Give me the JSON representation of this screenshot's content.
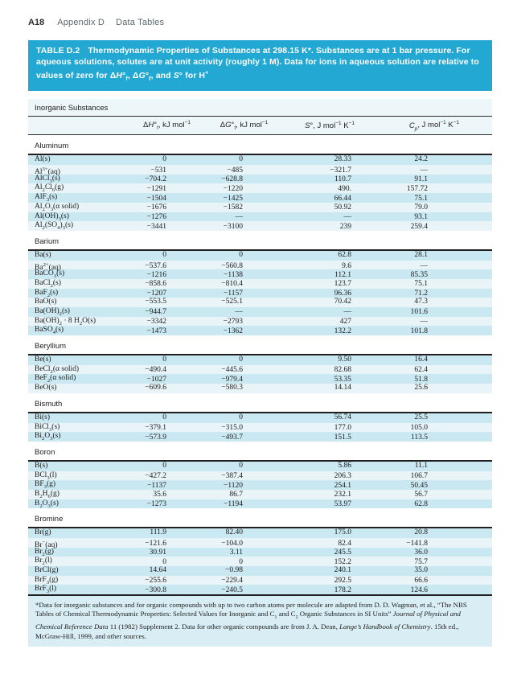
{
  "page": {
    "page_number": "A18",
    "appendix": "Appendix D",
    "section": "Data Tables"
  },
  "table": {
    "title_label": "TABLE D.2",
    "title_body_html": "Thermodynamic Properties of Substances at 298.15 K*. Substances are at 1 bar pressure. For aqueous solutions, solutes are at unit activity (roughly 1 M). Data for ions in aqueous solution are relative to values of zero for Δ<i>H</i>°<sub>f</sub>, Δ<i>G</i>°<sub>f</sub>, and <i>S</i>° for H<sup>+</sup>",
    "subtable_label": "Inorganic Substances",
    "columns": [
      {
        "html": "Δ<i>H</i>°<sub>f</sub>, kJ mol<sup>−1</sup>"
      },
      {
        "html": "Δ<i>G</i>°<sub>f</sub>, kJ mol<sup>−1</sup>"
      },
      {
        "html": "<i>S</i>°, J mol<sup>−1</sup> K<sup>−1</sup>"
      },
      {
        "html": "<i>C<sub>p</sub></i>, J mol<sup>−1</sup> K<sup>−1</sup>"
      }
    ],
    "missing_value_symbol": "—",
    "sections": [
      {
        "name": "Aluminum",
        "rows": [
          {
            "substance_html": "Al(s)",
            "values": [
              "0",
              "0",
              "28.33",
              "24.2"
            ]
          },
          {
            "substance_html": "Al<sup>3+</sup>(aq)",
            "values": [
              "−531",
              "−485",
              "−321.7",
              "—"
            ]
          },
          {
            "substance_html": "AlCl<sub>3</sub>(s)",
            "values": [
              "−704.2",
              "−628.8",
              "110.7",
              "91.1"
            ]
          },
          {
            "substance_html": "Al<sub>2</sub>Cl<sub>6</sub>(g)",
            "values": [
              "−1291",
              "−1220",
              "490.",
              "157.72"
            ]
          },
          {
            "substance_html": "AlF<sub>3</sub>(s)",
            "values": [
              "−1504",
              "−1425",
              "66.44",
              "75.1"
            ]
          },
          {
            "substance_html": "Al<sub>2</sub>O<sub>3</sub>(α solid)",
            "values": [
              "−1676",
              "−1582",
              "50.92",
              "79.0"
            ]
          },
          {
            "substance_html": "Al(OH)<sub>3</sub>(s)",
            "values": [
              "−1276",
              "—",
              "—",
              "93.1"
            ]
          },
          {
            "substance_html": "Al<sub>2</sub>(SO<sub>4</sub>)<sub>3</sub>(s)",
            "values": [
              "−3441",
              "−3100",
              "239",
              "259.4"
            ]
          }
        ]
      },
      {
        "name": "Barium",
        "rows": [
          {
            "substance_html": "Ba(s)",
            "values": [
              "0",
              "0",
              "62.8",
              "28.1"
            ]
          },
          {
            "substance_html": "Ba<sup>2+</sup>(aq)",
            "values": [
              "−537.6",
              "−560.8",
              "9.6",
              "—"
            ]
          },
          {
            "substance_html": "BaCO<sub>3</sub>(s)",
            "values": [
              "−1216",
              "−1138",
              "112.1",
              "85.35"
            ]
          },
          {
            "substance_html": "BaCl<sub>2</sub>(s)",
            "values": [
              "−858.6",
              "−810.4",
              "123.7",
              "75.1"
            ]
          },
          {
            "substance_html": "BaF<sub>2</sub>(s)",
            "values": [
              "−1207",
              "−1157",
              "96.36",
              "71.2"
            ]
          },
          {
            "substance_html": "BaO(s)",
            "values": [
              "−553.5",
              "−525.1",
              "70.42",
              "47.3"
            ]
          },
          {
            "substance_html": "Ba(OH)<sub>2</sub>(s)",
            "values": [
              "−944.7",
              "—",
              "—",
              "101.6"
            ]
          },
          {
            "substance_html": "Ba(OH)<sub>2</sub> · 8 H<sub>2</sub>O(s)",
            "values": [
              "−3342",
              "−2793",
              "427",
              "—"
            ]
          },
          {
            "substance_html": "BaSO<sub>4</sub>(s)",
            "values": [
              "−1473",
              "−1362",
              "132.2",
              "101.8"
            ]
          }
        ]
      },
      {
        "name": "Beryllium",
        "rows": [
          {
            "substance_html": "Be(s)",
            "values": [
              "0",
              "0",
              "9.50",
              "16.4"
            ]
          },
          {
            "substance_html": "BeCl<sub>2</sub>(α solid)",
            "values": [
              "−490.4",
              "−445.6",
              "82.68",
              "62.4"
            ]
          },
          {
            "substance_html": "BeF<sub>2</sub>(α solid)",
            "values": [
              "−1027",
              "−979.4",
              "53.35",
              "51.8"
            ]
          },
          {
            "substance_html": "BeO(s)",
            "values": [
              "−609.6",
              "−580.3",
              "14.14",
              "25.6"
            ]
          }
        ]
      },
      {
        "name": "Bismuth",
        "rows": [
          {
            "substance_html": "Bi(s)",
            "values": [
              "0",
              "0",
              "56.74",
              "25.5"
            ]
          },
          {
            "substance_html": "BiCl<sub>3</sub>(s)",
            "values": [
              "−379.1",
              "−315.0",
              "177.0",
              "105.0"
            ]
          },
          {
            "substance_html": "Bi<sub>2</sub>O<sub>3</sub>(s)",
            "values": [
              "−573.9",
              "−493.7",
              "151.5",
              "113.5"
            ]
          }
        ]
      },
      {
        "name": "Boron",
        "rows": [
          {
            "substance_html": "B(s)",
            "values": [
              "0",
              "0",
              "5.86",
              "11.1"
            ]
          },
          {
            "substance_html": "BCl<sub>3</sub>(l)",
            "values": [
              "−427.2",
              "−387.4",
              "206.3",
              "106.7"
            ]
          },
          {
            "substance_html": "BF<sub>3</sub>(g)",
            "values": [
              "−1137",
              "−1120",
              "254.1",
              "50.45"
            ]
          },
          {
            "substance_html": "B<sub>2</sub>H<sub>6</sub>(g)",
            "values": [
              "35.6",
              "86.7",
              "232.1",
              "56.7"
            ]
          },
          {
            "substance_html": "B<sub>2</sub>O<sub>3</sub>(s)",
            "values": [
              "−1273",
              "−1194",
              "53.97",
              "62.8"
            ]
          }
        ]
      },
      {
        "name": "Bromine",
        "rows": [
          {
            "substance_html": "Br(g)",
            "values": [
              "111.9",
              "82.40",
              "175.0",
              "20.8"
            ]
          },
          {
            "substance_html": "Br<sup>−</sup>(aq)",
            "values": [
              "−121.6",
              "−104.0",
              "82.4",
              "−141.8"
            ]
          },
          {
            "substance_html": "Br<sub>2</sub>(g)",
            "values": [
              "30.91",
              "3.11",
              "245.5",
              "36.0"
            ]
          },
          {
            "substance_html": "Br<sub>2</sub>(l)",
            "values": [
              "0",
              "0",
              "152.2",
              "75.7"
            ]
          },
          {
            "substance_html": "BrCl(g)",
            "values": [
              "14.64",
              "−0.98",
              "240.1",
              "35.0"
            ]
          },
          {
            "substance_html": "BrF<sub>3</sub>(g)",
            "values": [
              "−255.6",
              "−229.4",
              "292.5",
              "66.6"
            ]
          },
          {
            "substance_html": "BrF<sub>3</sub>(l)",
            "values": [
              "−300.8",
              "−240.5",
              "178.2",
              "124.6"
            ]
          }
        ]
      }
    ],
    "footnote_html": "*Data for inorganic substances and for organic compounds with up to two carbon atoms per molecule are adapted from D. D. Wagman, et al., “The NBS Tables of Chemical Thermodynamic Properties: Selected Values for Inorganic and C<sub>1</sub> and C<sub>2</sub> Organic Substances in SI Units” <i>Journal of Physical and Chemical Reference Data</i> 11 (1982) Supplement 2. Data for other organic compounds are from J. A. Dean, <i>Lange’s Handbook of Chemistry</i>. 15th ed., McGraw-Hill, 1999, and other sources.",
    "colors": {
      "banner_cyan": "#23a8d3",
      "row_stripe_dark": "#c9e8f1",
      "row_stripe_light": "#e8f4f8",
      "header_band": "#edf6f9",
      "footnote_background": "#d9edf4"
    }
  }
}
